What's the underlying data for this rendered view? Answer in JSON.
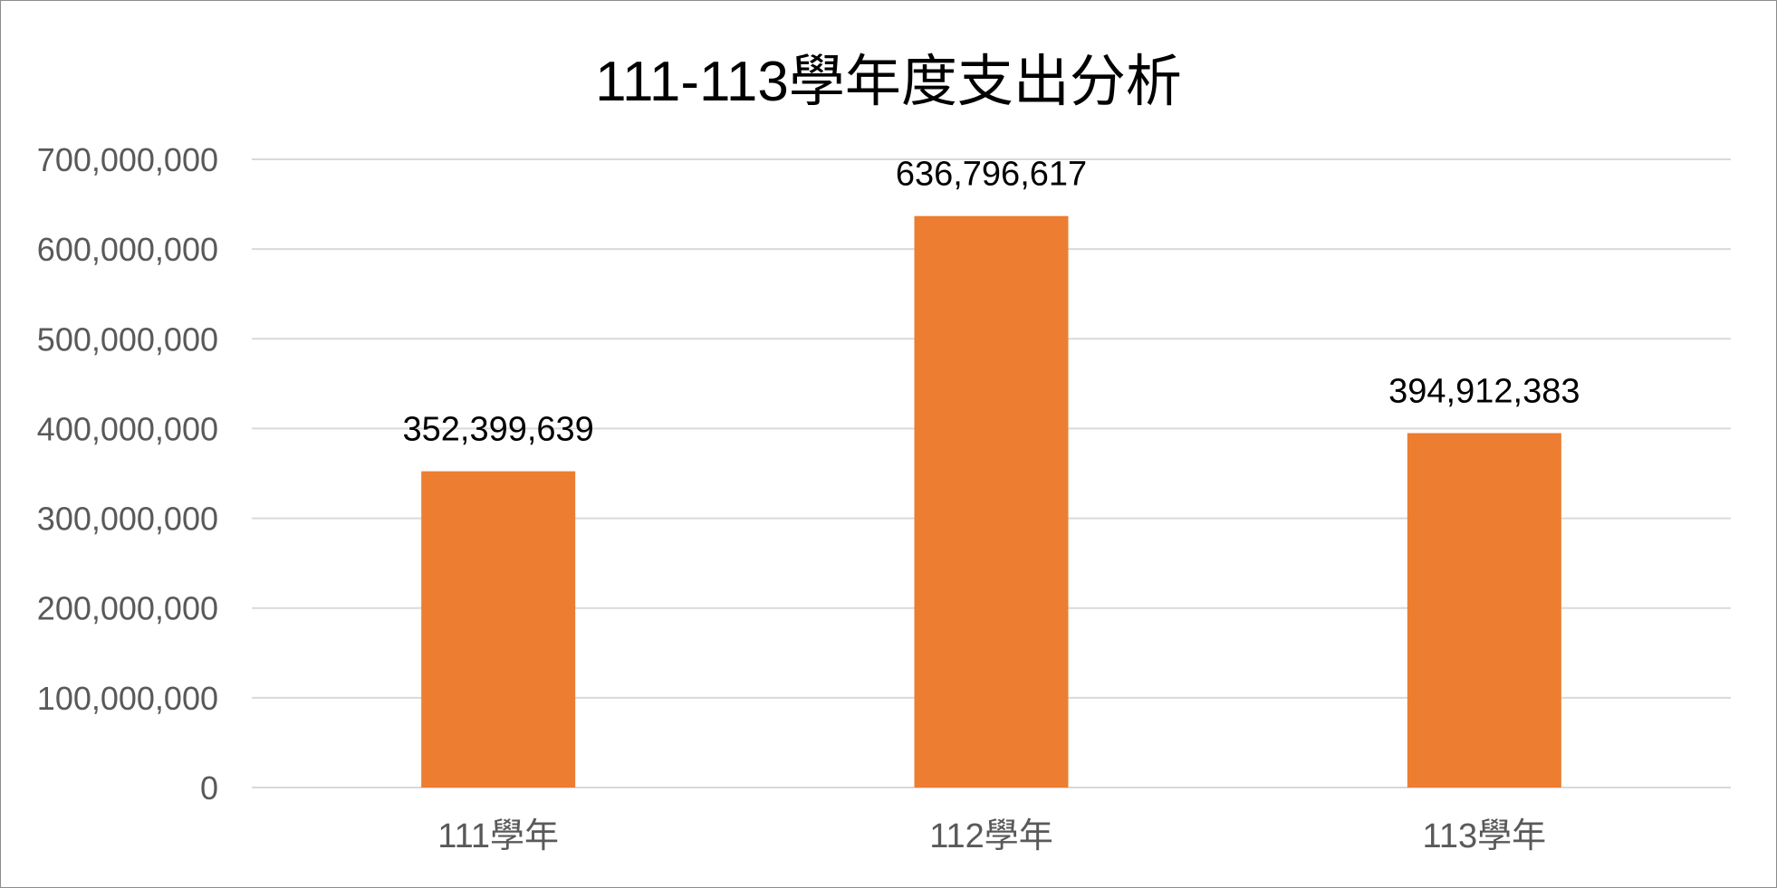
{
  "chart_data": {
    "type": "bar",
    "title": "111-113學年度支出分析",
    "xlabel": "",
    "ylabel": "",
    "categories": [
      "111學年",
      "112學年",
      "113學年"
    ],
    "values": [
      352399639,
      636796617,
      394912383
    ],
    "data_labels": [
      "352,399,639",
      "636,796,617",
      "394,912,383"
    ],
    "ylim": [
      0,
      700000000
    ],
    "yticks": [
      0,
      100000000,
      200000000,
      300000000,
      400000000,
      500000000,
      600000000,
      700000000
    ],
    "ytick_labels": [
      "0",
      "100,000,000",
      "200,000,000",
      "300,000,000",
      "400,000,000",
      "500,000,000",
      "600,000,000",
      "700,000,000"
    ],
    "grid": true,
    "legend": "none",
    "bar_color": "#ED7D31",
    "grid_color": "#D9D9D9"
  }
}
